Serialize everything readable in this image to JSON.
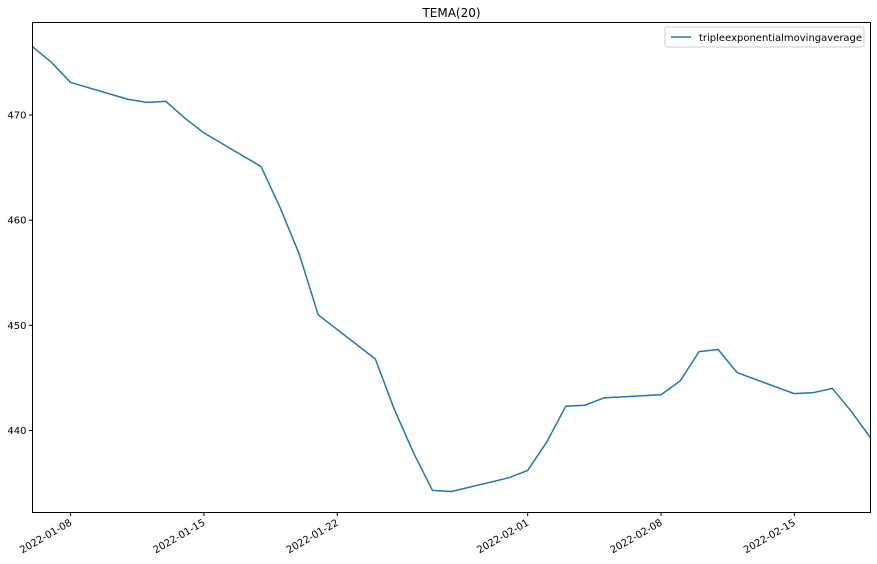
{
  "chart_data": {
    "type": "line",
    "title": "TEMA(20)",
    "xlabel": "",
    "ylabel": "",
    "grid": false,
    "legend_position": "top-right",
    "xlim": [
      "2022-01-06",
      "2022-02-19"
    ],
    "ylim": [
      432.2,
      478.8
    ],
    "yticks": [
      440,
      450,
      460,
      470
    ],
    "xticks": [
      "2022-01-08",
      "2022-01-15",
      "2022-01-22",
      "2022-02-01",
      "2022-02-08",
      "2022-02-15"
    ],
    "series": [
      {
        "name": "tripleexponentialmovingaverage",
        "color": "#1f77b4",
        "x": [
          "2022-01-06",
          "2022-01-07",
          "2022-01-08",
          "2022-01-11",
          "2022-01-12",
          "2022-01-13",
          "2022-01-14",
          "2022-01-15",
          "2022-01-18",
          "2022-01-19",
          "2022-01-20",
          "2022-01-21",
          "2022-01-24",
          "2022-01-25",
          "2022-01-26",
          "2022-01-27",
          "2022-01-28",
          "2022-01-31",
          "2022-02-01",
          "2022-02-02",
          "2022-02-03",
          "2022-02-04",
          "2022-02-05",
          "2022-02-08",
          "2022-02-09",
          "2022-02-10",
          "2022-02-11",
          "2022-02-12",
          "2022-02-15",
          "2022-02-16",
          "2022-02-17",
          "2022-02-18",
          "2022-02-19"
        ],
        "y": [
          476.5,
          475.0,
          473.1,
          471.5,
          471.2,
          471.3,
          469.7,
          468.3,
          465.1,
          461.2,
          456.8,
          451.0,
          446.8,
          442.0,
          437.9,
          434.3,
          434.2,
          435.5,
          436.2,
          438.9,
          442.3,
          442.4,
          443.1,
          443.4,
          444.7,
          447.5,
          447.7,
          445.5,
          443.5,
          443.6,
          444.0,
          441.8,
          439.3
        ]
      }
    ]
  }
}
